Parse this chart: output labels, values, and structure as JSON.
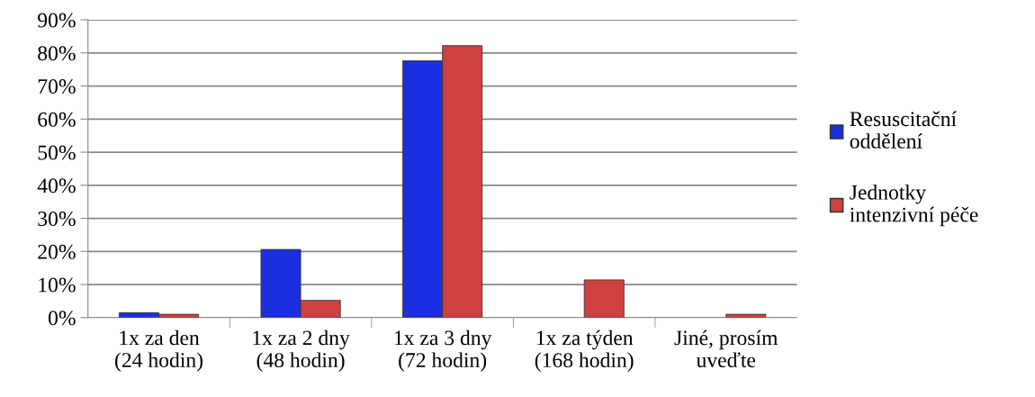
{
  "chart_data": {
    "type": "bar",
    "categories": [
      "1x za den\n(24 hodin)",
      "1x za 2 dny\n(48 hodin)",
      "1x za 3 dny\n(72 hodin)",
      "1x za týden\n(168 hodin)",
      "Jiné, prosím\nuveďte"
    ],
    "series": [
      {
        "name": "Resuscitační\noddělení",
        "color": "#1c2ee0",
        "values": [
          1.5,
          20.6,
          77.6,
          0,
          0
        ]
      },
      {
        "name": "Jednotky\nintenzivní péče",
        "color": "#d04040",
        "values": [
          1.0,
          5.2,
          82.2,
          11.4,
          1.0
        ]
      }
    ],
    "ylim": [
      0,
      90
    ],
    "yticks": [
      {
        "value": 0,
        "label": "0%"
      },
      {
        "value": 10,
        "label": "10%"
      },
      {
        "value": 20,
        "label": "20%"
      },
      {
        "value": 30,
        "label": "30%"
      },
      {
        "value": 40,
        "label": "40%"
      },
      {
        "value": 50,
        "label": "50%"
      },
      {
        "value": 60,
        "label": "60%"
      },
      {
        "value": 70,
        "label": "70%"
      },
      {
        "value": 80,
        "label": "80%"
      },
      {
        "value": 90,
        "label": "90%"
      }
    ],
    "grid": "y",
    "legend": "right"
  }
}
